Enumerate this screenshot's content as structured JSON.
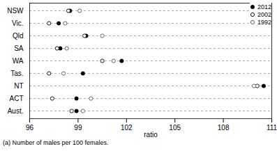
{
  "chart_data": {
    "type": "dot",
    "x_label": "ratio",
    "caption": "(a) Number of males per 100 females.",
    "orientation": "horizontal",
    "categories": [
      "NSW",
      "Vic.",
      "Qld",
      "SA",
      "WA",
      "Tas.",
      "NT",
      "ACT",
      "Aust."
    ],
    "series": [
      {
        "name": "2012",
        "color": "#000000",
        "marker": "filled",
        "values": [
          98.5,
          97.8,
          99.5,
          97.9,
          101.7,
          99.3,
          110.5,
          98.9,
          98.9
        ]
      },
      {
        "name": "2002",
        "color": "#000000",
        "marker": "open",
        "values": [
          98.4,
          97.2,
          99.4,
          97.7,
          100.5,
          97.2,
          110.1,
          97.4,
          98.6
        ]
      },
      {
        "name": "1992",
        "color": "#555555",
        "marker": "open",
        "values": [
          99.1,
          98.2,
          100.5,
          98.3,
          101.2,
          98.1,
          109.9,
          99.8,
          99.3
        ]
      }
    ],
    "xlim": [
      96,
      111
    ],
    "xticks": [
      96,
      99,
      102,
      105,
      108,
      111
    ],
    "legend": "top-right",
    "grid": true
  }
}
